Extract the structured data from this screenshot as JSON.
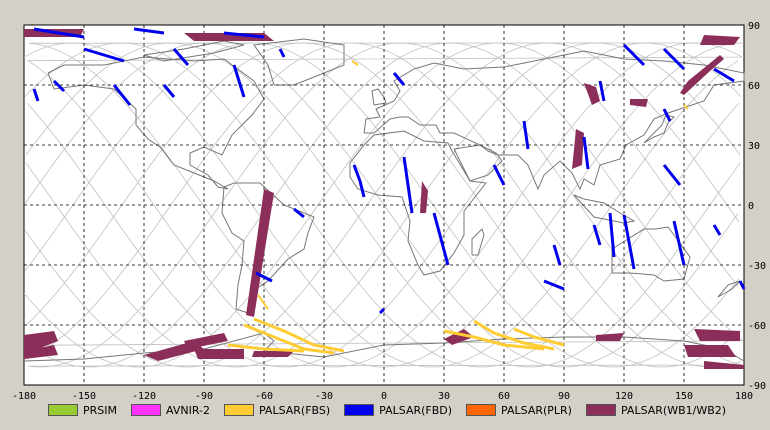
{
  "map": {
    "lon_range": [
      -180,
      180
    ],
    "lat_range": [
      -90,
      90
    ],
    "x_ticks": [
      "-180",
      "-150",
      "-120",
      "-90",
      "-60",
      "-30",
      "0",
      "30",
      "60",
      "90",
      "120",
      "150",
      "180"
    ],
    "y_ticks": [
      "90",
      "60",
      "30",
      "0",
      "-30",
      "-60",
      "-90"
    ],
    "grid": "dashed",
    "legend_position": "bottom"
  },
  "legend": [
    {
      "label": "PRSIM",
      "color": "#99cc33"
    },
    {
      "label": "AVNIR-2",
      "color": "#ff33ff"
    },
    {
      "label": "PALSAR(FBS)",
      "color": "#ffcc33"
    },
    {
      "label": "PALSAR(FBD)",
      "color": "#0000ee"
    },
    {
      "label": "PALSAR(PLR)",
      "color": "#ff6600"
    },
    {
      "label": "PALSAR(WB1/WB2)",
      "color": "#8b2f5a"
    }
  ],
  "colors": {
    "background": "#d4d0c8",
    "map": "#ffffff",
    "coast": "#777777",
    "orbit": "#c0c0c0"
  }
}
